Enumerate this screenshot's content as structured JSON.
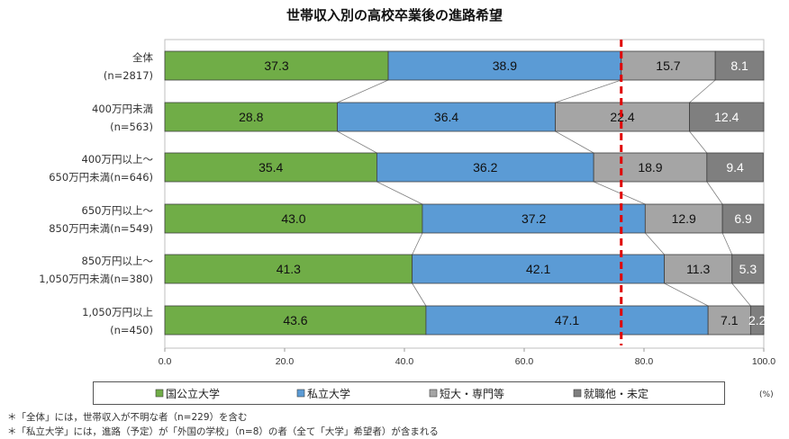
{
  "chart_data": {
    "type": "bar",
    "orientation": "horizontal",
    "stacked": true,
    "title": "世帯収入別の高校卒業後の進路希望",
    "categories": [
      [
        "全体",
        "(n=2817)"
      ],
      [
        "400万円未満",
        "(n=563)"
      ],
      [
        "400万円以上～",
        "650万円未満(n=646)"
      ],
      [
        "650万円以上～",
        "850万円未満(n=549)"
      ],
      [
        "850万円以上～",
        "1,050万円未満(n=380)"
      ],
      [
        "1,050万円以上",
        "(n=450)"
      ]
    ],
    "series": [
      {
        "name": "国公立大学",
        "color": "#70ad47",
        "values": [
          37.3,
          28.8,
          35.4,
          43.0,
          41.3,
          43.6
        ]
      },
      {
        "name": "私立大学",
        "color": "#5b9bd5",
        "values": [
          38.9,
          36.4,
          36.2,
          37.2,
          42.1,
          47.1
        ]
      },
      {
        "name": "短大・専門等",
        "color": "#a5a5a5",
        "values": [
          15.7,
          22.4,
          18.9,
          12.9,
          11.3,
          7.1
        ]
      },
      {
        "name": "就職他・未定",
        "color": "#7f7f7f",
        "values": [
          8.1,
          12.4,
          9.4,
          6.9,
          5.3,
          2.2
        ]
      }
    ],
    "value_labels": [
      [
        "37.3",
        "38.9",
        "15.7",
        "8.1"
      ],
      [
        "28.8",
        "36.4",
        "22.4",
        "12.4"
      ],
      [
        "35.4",
        "36.2",
        "18.9",
        "9.4"
      ],
      [
        "43.0",
        "37.2",
        "12.9",
        "6.9"
      ],
      [
        "41.3",
        "42.1",
        "11.3",
        "5.3"
      ],
      [
        "43.6",
        "47.1",
        "7.1",
        "2.2"
      ]
    ],
    "xlim": [
      0,
      100
    ],
    "xticks": [
      "0.0",
      "20.0",
      "40.0",
      "60.0",
      "80.0",
      "100.0"
    ],
    "x_unit": "(%)",
    "reference_line": {
      "x": 76.2,
      "color": "#e00000",
      "style": "dashed"
    },
    "legend_position": "bottom"
  },
  "notes": [
    "＊「全体」には，世帯収入が不明な者（n=229）を含む",
    "＊「私立大学」には，進路（予定）が「外国の学校」（n=8）の者（全て「大学」希望者）が含まれる"
  ]
}
